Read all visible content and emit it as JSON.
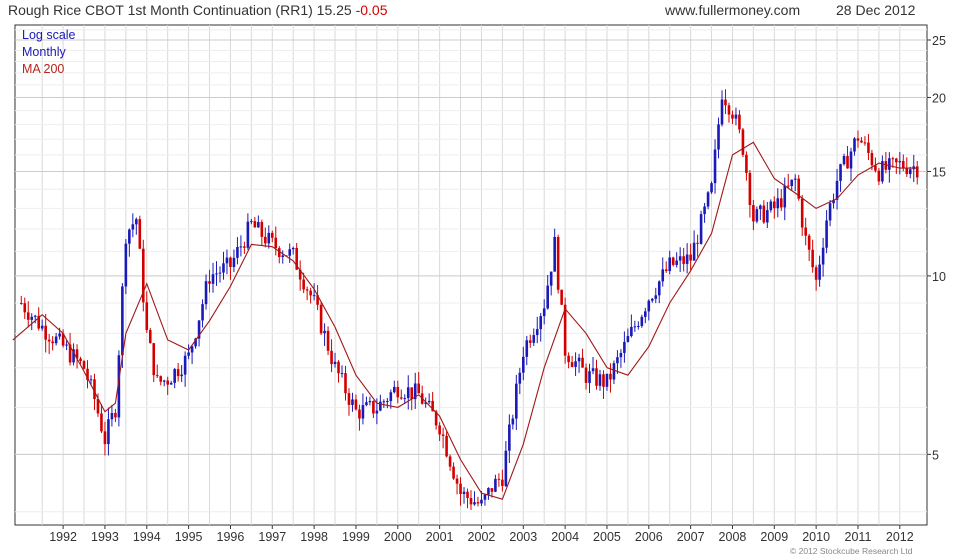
{
  "header": {
    "title": "Rough Rice CBOT 1st Month Continuation (RR1) 15.25",
    "change": "-0.05",
    "website": "www.fullermoney.com",
    "date": "28 Dec 2012"
  },
  "legend": {
    "scale": "Log scale",
    "period": "Monthly",
    "ma": "MA 200"
  },
  "credit": "© 2012 Stockcube Research Ltd",
  "colors": {
    "up": "#1a1ab8",
    "down": "#d40000",
    "ma": "#a01818",
    "grid": "#d9d9d9",
    "axis": "#333333"
  },
  "chart_data": {
    "type": "line",
    "y_scale": "log",
    "ylim": [
      3.8,
      26.5
    ],
    "y_ticks": [
      5,
      10,
      15,
      20,
      25
    ],
    "x_ticks": [
      "1992",
      "1993",
      "1994",
      "1995",
      "1996",
      "1997",
      "1998",
      "1999",
      "2000",
      "2001",
      "2002",
      "2003",
      "2004",
      "2005",
      "2006",
      "2007",
      "2008",
      "2009",
      "2010",
      "2011",
      "2012"
    ],
    "grid": true,
    "series": [
      {
        "name": "Monthly",
        "style": "candlestick-up-blue-down-red",
        "x": [
          1991.5,
          1992.0,
          1992.5,
          1993.0,
          1993.25,
          1993.5,
          1993.75,
          1994.0,
          1994.25,
          1994.5,
          1994.75,
          1995.0,
          1995.5,
          1996.0,
          1996.5,
          1997.0,
          1997.5,
          1998.0,
          1998.5,
          1999.0,
          1999.5,
          2000.0,
          2000.5,
          2001.0,
          2001.5,
          2002.0,
          2002.5,
          2002.75,
          2003.0,
          2003.5,
          2004.0,
          2004.25,
          2004.5,
          2005.0,
          2005.5,
          2006.0,
          2006.5,
          2007.0,
          2007.5,
          2008.0,
          2008.25,
          2008.5,
          2008.75,
          2009.0,
          2009.5,
          2010.0,
          2010.25,
          2010.5,
          2010.75,
          2011.0,
          2011.5,
          2012.0,
          2012.5,
          2012.95
        ],
        "values": [
          9.0,
          8.2,
          7.6,
          7.0,
          6.2,
          5.3,
          6.0,
          11.8,
          12.5,
          8.0,
          6.6,
          6.7,
          7.3,
          10.0,
          10.4,
          12.2,
          11.3,
          10.8,
          9.0,
          7.0,
          5.9,
          6.0,
          6.5,
          6.3,
          5.6,
          4.3,
          4.1,
          4.4,
          4.6,
          7.5,
          9.0,
          11.3,
          7.5,
          6.8,
          6.6,
          7.8,
          9.2,
          10.4,
          10.7,
          14.0,
          20.5,
          19.0,
          16.5,
          12.5,
          13.0,
          14.5,
          11.5,
          9.8,
          12.5,
          14.5,
          17.2,
          15.0,
          15.4,
          15.25
        ]
      },
      {
        "name": "MA 200",
        "x": [
          1991.3,
          1992.0,
          1992.5,
          1993.0,
          1993.5,
          1993.75,
          1994.0,
          1994.5,
          1995.0,
          1995.5,
          1996.0,
          1996.5,
          1997.0,
          1997.5,
          1998.0,
          1998.5,
          1999.0,
          1999.5,
          2000.0,
          2000.5,
          2001.0,
          2001.5,
          2002.0,
          2002.5,
          2003.0,
          2003.5,
          2004.0,
          2004.5,
          2005.0,
          2005.5,
          2006.0,
          2006.5,
          2007.0,
          2007.5,
          2008.0,
          2008.5,
          2009.0,
          2009.5,
          2010.0,
          2010.5,
          2011.0,
          2011.5,
          2012.0,
          2012.5,
          2012.95
        ],
        "values": [
          7.8,
          8.6,
          8.0,
          6.9,
          5.9,
          6.1,
          8.0,
          9.7,
          7.8,
          7.5,
          8.4,
          9.6,
          11.3,
          11.2,
          10.6,
          9.5,
          8.2,
          6.8,
          6.1,
          6.0,
          6.3,
          5.8,
          4.9,
          4.3,
          4.2,
          5.2,
          7.0,
          8.8,
          8.0,
          7.0,
          6.8,
          7.6,
          9.0,
          10.2,
          11.8,
          16.0,
          16.8,
          14.6,
          13.8,
          13.0,
          13.5,
          14.8,
          15.5,
          15.2,
          15.2
        ]
      }
    ]
  }
}
